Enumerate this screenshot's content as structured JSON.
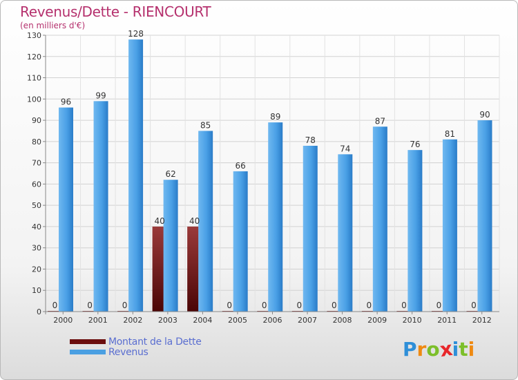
{
  "header": {
    "title": "Revenus/Dette - RIENCOURT",
    "subtitle": "(en milliers d'€)"
  },
  "chart_data": {
    "type": "bar",
    "title": "Revenus/Dette - RIENCOURT",
    "ylabel": "(en milliers d'€)",
    "xlabel": "",
    "categories": [
      "2000",
      "2001",
      "2002",
      "2003",
      "2004",
      "2005",
      "2006",
      "2007",
      "2008",
      "2009",
      "2010",
      "2011",
      "2012"
    ],
    "ylim": [
      0,
      130
    ],
    "yticks": [
      0,
      10,
      20,
      30,
      40,
      50,
      60,
      70,
      80,
      90,
      100,
      110,
      120,
      130
    ],
    "grid": true,
    "legend_position": "bottom-left",
    "series": [
      {
        "name": "Montant de la Dette",
        "color": "#6b0d0d",
        "values": [
          0,
          0,
          0,
          40,
          40,
          0,
          0,
          0,
          0,
          0,
          0,
          0,
          0
        ]
      },
      {
        "name": "Revenus",
        "color": "#4a9fe2",
        "values": [
          96,
          99,
          128,
          62,
          85,
          66,
          89,
          78,
          74,
          87,
          76,
          81,
          90
        ]
      }
    ]
  },
  "legend": {
    "items": [
      {
        "label": "Montant de la Dette",
        "color": "#6b0d0d"
      },
      {
        "label": "Revenus",
        "color": "#4a9fe2"
      }
    ]
  },
  "logo": {
    "letters": [
      "P",
      "r",
      "o",
      "x",
      "i",
      "t",
      "i"
    ],
    "colors": [
      "#2e8fd8",
      "#ef8a12",
      "#7cbf2a",
      "#e8262a",
      "#2e8fd8",
      "#7cbf2a",
      "#ef8a12"
    ]
  }
}
